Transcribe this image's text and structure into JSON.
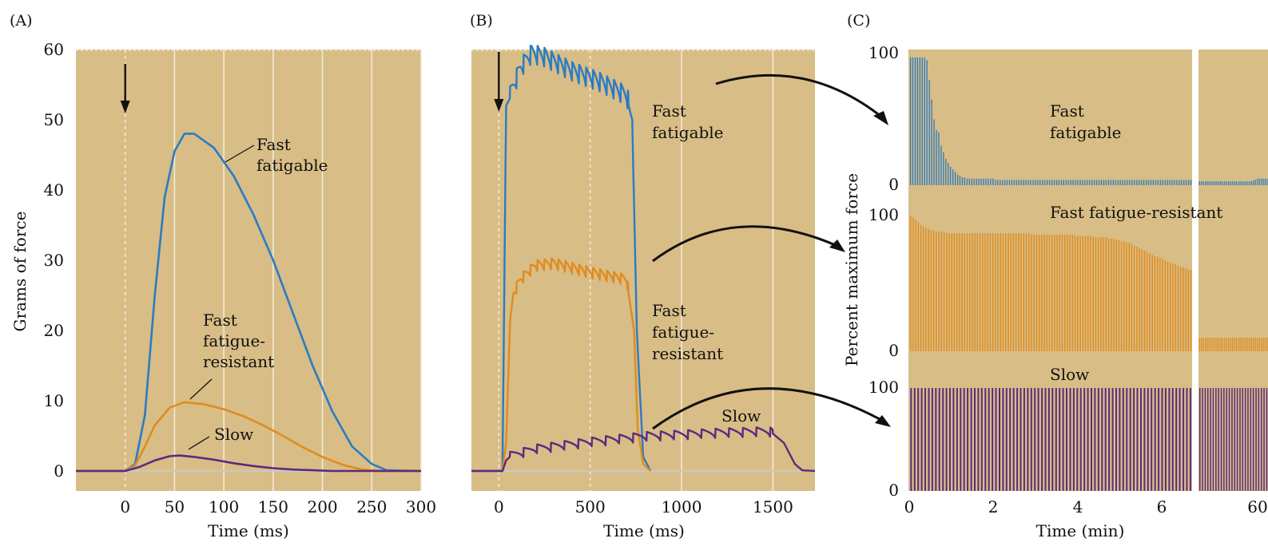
{
  "chart_data": [
    {
      "type": "line",
      "panel_label": "(A)",
      "xlabel": "Time (ms)",
      "ylabel": "Grams of force",
      "xlim": [
        -50,
        300
      ],
      "ylim": [
        -3,
        60
      ],
      "xticks": [
        0,
        50,
        100,
        150,
        200,
        250,
        300
      ],
      "yticks": [
        0,
        10,
        20,
        30,
        40,
        50,
        60
      ],
      "grid": "vertical",
      "stimulus_marker_x": 0,
      "series": [
        {
          "name": "Fast fatigable",
          "label_lines": [
            "Fast",
            "fatigable"
          ],
          "color": "#2a7bc4",
          "points": [
            [
              -50,
              0
            ],
            [
              0,
              0
            ],
            [
              10,
              1
            ],
            [
              20,
              8
            ],
            [
              30,
              25
            ],
            [
              40,
              39
            ],
            [
              50,
              45.5
            ],
            [
              60,
              48
            ],
            [
              70,
              48
            ],
            [
              90,
              46
            ],
            [
              110,
              42
            ],
            [
              130,
              36.5
            ],
            [
              150,
              30
            ],
            [
              170,
              22.5
            ],
            [
              190,
              15
            ],
            [
              210,
              8.5
            ],
            [
              230,
              3.5
            ],
            [
              250,
              1
            ],
            [
              265,
              0.1
            ],
            [
              300,
              0
            ]
          ]
        },
        {
          "name": "Fast fatigue-resistant",
          "label_lines": [
            "Fast",
            "fatigue-",
            "resistant"
          ],
          "color": "#e08c1e",
          "points": [
            [
              -50,
              0
            ],
            [
              0,
              0
            ],
            [
              10,
              0.8
            ],
            [
              20,
              3.5
            ],
            [
              30,
              6.5
            ],
            [
              45,
              9
            ],
            [
              60,
              9.8
            ],
            [
              80,
              9.5
            ],
            [
              100,
              8.8
            ],
            [
              120,
              7.8
            ],
            [
              140,
              6.5
            ],
            [
              160,
              5
            ],
            [
              180,
              3.4
            ],
            [
              200,
              2
            ],
            [
              220,
              0.9
            ],
            [
              240,
              0.2
            ],
            [
              260,
              0
            ],
            [
              300,
              0
            ]
          ]
        },
        {
          "name": "Slow",
          "label_lines": [
            "Slow"
          ],
          "color": "#5b2a7e",
          "points": [
            [
              -50,
              0
            ],
            [
              0,
              0
            ],
            [
              15,
              0.6
            ],
            [
              30,
              1.5
            ],
            [
              45,
              2.1
            ],
            [
              55,
              2.2
            ],
            [
              70,
              2
            ],
            [
              90,
              1.6
            ],
            [
              110,
              1.1
            ],
            [
              130,
              0.7
            ],
            [
              150,
              0.4
            ],
            [
              170,
              0.2
            ],
            [
              190,
              0.1
            ],
            [
              210,
              0
            ],
            [
              300,
              0
            ]
          ]
        }
      ]
    },
    {
      "type": "line",
      "panel_label": "(B)",
      "xlabel": "Time (ms)",
      "ylabel": "",
      "xlim": [
        -150,
        1730
      ],
      "ylim": [
        -3,
        60
      ],
      "xticks": [
        0,
        500,
        1000,
        1500
      ],
      "yticks": [],
      "grid": "vertical",
      "stimulus_marker_x": 0,
      "series": [
        {
          "name": "Fast fatigable",
          "label_lines": [
            "Fast",
            "fatigable"
          ],
          "color": "#2a7bc4",
          "envelope": [
            [
              -150,
              0
            ],
            [
              20,
              0
            ],
            [
              40,
              52
            ],
            [
              60,
              53
            ],
            [
              120,
              57
            ],
            [
              180,
              59
            ],
            [
              250,
              58.5
            ],
            [
              400,
              56.5
            ],
            [
              550,
              55
            ],
            [
              700,
              53
            ],
            [
              730,
              50
            ],
            [
              755,
              20
            ],
            [
              790,
              2
            ],
            [
              830,
              0
            ]
          ],
          "ripple_period": 38,
          "ripple_amp": 3.5
        },
        {
          "name": "Fast fatigue-resistant",
          "label_lines": [
            "Fast",
            "fatigue-",
            "resistant"
          ],
          "color": "#e08c1e",
          "envelope": [
            [
              20,
              0
            ],
            [
              40,
              4
            ],
            [
              60,
              20
            ],
            [
              80,
              25
            ],
            [
              120,
              27
            ],
            [
              200,
              29
            ],
            [
              300,
              29.3
            ],
            [
              500,
              28
            ],
            [
              700,
              27
            ],
            [
              740,
              20
            ],
            [
              760,
              6
            ],
            [
              790,
              1
            ],
            [
              830,
              0
            ]
          ],
          "ripple_period": 38,
          "ripple_amp": 2
        },
        {
          "name": "Slow",
          "label_lines": [
            "Slow"
          ],
          "color": "#5b2a7e",
          "envelope": [
            [
              -150,
              0
            ],
            [
              20,
              0
            ],
            [
              40,
              1.5
            ],
            [
              60,
              2
            ],
            [
              200,
              3
            ],
            [
              500,
              4
            ],
            [
              800,
              4.8
            ],
            [
              1200,
              5.3
            ],
            [
              1480,
              5.5
            ],
            [
              1500,
              5.3
            ],
            [
              1560,
              4
            ],
            [
              1620,
              1
            ],
            [
              1660,
              0.1
            ],
            [
              1730,
              0
            ]
          ],
          "ripple_period": 75,
          "ripple_amp": 1.5
        }
      ]
    },
    {
      "type": "bar",
      "panel_label": "(C)",
      "xlabel": "Time (min)",
      "ylabel": "Percent maximum force",
      "xlim": [
        0,
        8.2
      ],
      "xticks": [
        "0",
        "2",
        "4",
        "6",
        "60"
      ],
      "ylim": [
        0,
        100
      ],
      "break_after_min": 6.7,
      "series": [
        {
          "name": "Fast fatigable",
          "label_lines": [
            "Fast",
            "fatigable"
          ],
          "color": "#2a7bc4",
          "yticks": [
            "100",
            "0"
          ],
          "values_before_break": [
            97,
            97,
            97,
            97,
            97,
            97,
            97,
            95,
            80,
            65,
            50,
            42,
            40,
            30,
            25,
            20,
            17,
            14,
            12,
            10,
            8,
            7,
            6,
            6,
            5,
            5,
            5,
            5,
            5,
            5,
            5,
            5,
            5,
            5,
            5,
            5,
            4,
            4,
            4,
            4,
            4,
            4,
            4,
            4,
            4,
            4,
            4,
            4,
            4,
            4,
            4,
            4,
            4,
            4,
            4,
            4,
            4,
            4,
            4,
            4,
            4,
            4,
            4,
            4,
            4,
            4,
            4,
            4,
            4,
            4,
            4,
            4,
            4,
            4,
            4,
            4,
            4,
            4,
            4,
            4,
            4,
            4,
            4,
            4,
            4,
            4,
            4,
            4,
            4,
            4,
            4,
            4,
            4,
            4,
            4,
            4,
            4,
            4,
            4,
            4,
            4,
            4,
            4,
            4,
            4,
            4,
            4,
            4,
            4,
            4,
            4,
            4,
            4,
            4,
            4,
            4,
            4,
            4,
            4,
            4
          ],
          "values_after_break": [
            3,
            3,
            3,
            3,
            3,
            3,
            3,
            3,
            3,
            3,
            3,
            3,
            3,
            3,
            3,
            3,
            3,
            3,
            3,
            3,
            3,
            3,
            3,
            3,
            3,
            3,
            3,
            3,
            4,
            4,
            5,
            5,
            5,
            5,
            5,
            5
          ]
        },
        {
          "name": "Fast fatigue-resistant",
          "label_lines": [
            "Fast fatigue-resistant"
          ],
          "color": "#e08c1e",
          "yticks": [
            "100",
            "0"
          ],
          "values_before_break": [
            100,
            99,
            97,
            95,
            93,
            92,
            91,
            90,
            89,
            89,
            88,
            88,
            88,
            88,
            87,
            87,
            87,
            87,
            87,
            87,
            87,
            87,
            87,
            87,
            87,
            87,
            87,
            87,
            87,
            87,
            87,
            87,
            87,
            87,
            87,
            87,
            87,
            87,
            87,
            87,
            87,
            87,
            87,
            87,
            87,
            87,
            87,
            86,
            86,
            86,
            86,
            86,
            86,
            86,
            86,
            86,
            86,
            86,
            86,
            86,
            86,
            86,
            86,
            86,
            85,
            85,
            85,
            85,
            85,
            85,
            85,
            84,
            84,
            84,
            84,
            84,
            84,
            83,
            83,
            83,
            82,
            82,
            81,
            81,
            80,
            80,
            79,
            78,
            77,
            76,
            75,
            74,
            73,
            72,
            71,
            70,
            70,
            69,
            68,
            67,
            66,
            65,
            65,
            64,
            63,
            62,
            62,
            61,
            60,
            60
          ],
          "values_after_break": [
            10,
            10,
            10,
            10,
            10,
            10,
            10,
            10,
            10,
            10,
            10,
            10,
            10,
            10,
            10,
            10,
            10,
            10,
            10,
            10,
            10,
            10,
            10,
            10,
            10,
            10,
            10,
            10,
            10,
            10,
            10,
            10,
            10,
            10,
            10,
            10
          ]
        },
        {
          "name": "Slow",
          "label_lines": [
            "Slow"
          ],
          "color": "#5b2a7e",
          "yticks": [
            "100",
            "0"
          ],
          "values_before_break": [
            100,
            100,
            100,
            100,
            100,
            100,
            100,
            100,
            100,
            100,
            100,
            100,
            100,
            100,
            100,
            100,
            100,
            100,
            100,
            100,
            100,
            100,
            100,
            100,
            100,
            100,
            100,
            100,
            100,
            100,
            100,
            100,
            100,
            100,
            100,
            100,
            100,
            100,
            100,
            100,
            100,
            100,
            100,
            100,
            100,
            100,
            100,
            100,
            100,
            100,
            100,
            100,
            100,
            100,
            100,
            100,
            100,
            100,
            100,
            100,
            100,
            100,
            100,
            100,
            100,
            100,
            100,
            100,
            100,
            100,
            100,
            100,
            100,
            100,
            100,
            100,
            100,
            100,
            100,
            100
          ],
          "values_after_break": [
            100,
            100,
            100,
            100,
            100,
            100,
            100,
            100,
            100,
            100,
            100,
            100,
            100,
            100,
            100,
            100,
            100,
            100,
            100,
            100,
            100,
            100,
            100,
            100,
            100,
            100
          ]
        }
      ]
    }
  ],
  "colors": {
    "plot_background": "#d8bd86",
    "grid": "#f3ead6",
    "arrow": "#111111"
  }
}
